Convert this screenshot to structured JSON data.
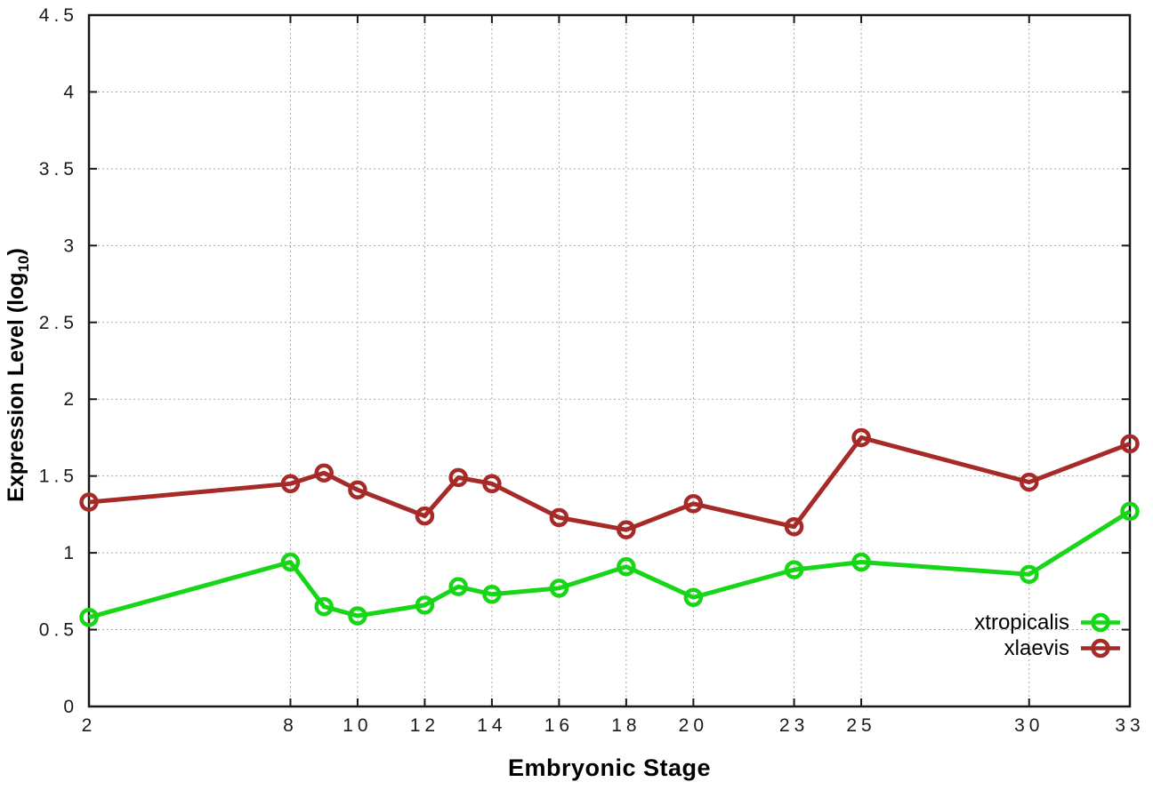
{
  "chart_data": {
    "type": "line",
    "title": "",
    "xlabel": "Embryonic Stage",
    "ylabel": "Expression Level (log10)",
    "ylabel_parts": {
      "main": "Expression Level (log",
      "sub": "10",
      "end": ")"
    },
    "x": [
      2,
      8,
      9,
      10,
      12,
      13,
      14,
      16,
      18,
      20,
      23,
      25,
      30,
      33
    ],
    "x_ticks": [
      2,
      8,
      10,
      12,
      14,
      16,
      18,
      20,
      23,
      25,
      30,
      33
    ],
    "y_ticks": [
      0,
      0.5,
      1,
      1.5,
      2,
      2.5,
      3,
      3.5,
      4,
      4.5
    ],
    "xlim": [
      2,
      33
    ],
    "ylim": [
      0,
      4.5
    ],
    "grid": true,
    "legend_position": "bottom-right",
    "marker": "open-circle",
    "series": [
      {
        "name": "xtropicalis",
        "color": "#17d517",
        "values": [
          0.58,
          0.94,
          0.65,
          0.59,
          0.66,
          0.78,
          0.73,
          0.77,
          0.91,
          0.71,
          0.89,
          0.94,
          0.86,
          1.27
        ]
      },
      {
        "name": "xlaevis",
        "color": "#a62a27",
        "values": [
          1.33,
          1.45,
          1.52,
          1.41,
          1.24,
          1.49,
          1.45,
          1.23,
          1.15,
          1.32,
          1.17,
          1.75,
          1.46,
          1.71
        ]
      }
    ]
  }
}
